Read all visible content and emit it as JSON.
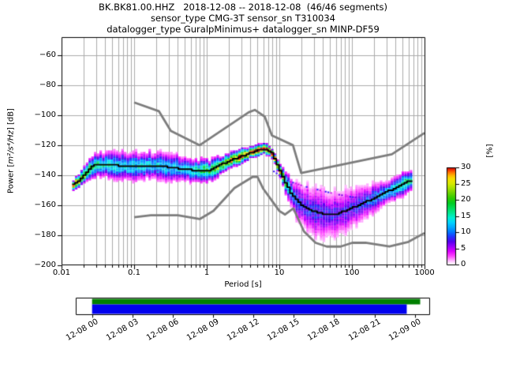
{
  "title": {
    "line1": "BK.BK81.00.HHZ   2018-12-08 -- 2018-12-08  (46/46 segments)",
    "line2": "sensor_type CMG-3T sensor_sn T310034",
    "line3": "datalogger_type GuralpMinimus+ datalogger_sn MINP-DF59"
  },
  "axes": {
    "ylabel": {
      "pre": "Power [",
      "math": "m²/s⁴/Hz",
      "post": "] [dB]"
    },
    "xlabel": "Period [s]",
    "colorbar_label": "[%]"
  },
  "chart_data": {
    "type": "heatmap",
    "title": "BK.BK81.00.HHZ 2018-12-08 -- 2018-12-08 (46/46 segments)",
    "x_axis": {
      "label": "Period [s]",
      "scale": "log",
      "range": [
        0.01,
        1000
      ],
      "ticks": [
        {
          "label": "0.01",
          "value": 0.01
        },
        {
          "label": "0.1",
          "value": 0.1
        },
        {
          "label": "1",
          "value": 1
        },
        {
          "label": "10",
          "value": 10
        },
        {
          "label": "100",
          "value": 100
        },
        {
          "label": "1000",
          "value": 1000
        }
      ]
    },
    "y_axis": {
      "label": "Power [m²/s⁴/Hz] [dB]",
      "range": [
        -200,
        -48
      ],
      "ticks": [
        {
          "label": "−60",
          "value": -60
        },
        {
          "label": "−80",
          "value": -80
        },
        {
          "label": "−100",
          "value": -100
        },
        {
          "label": "−120",
          "value": -120
        },
        {
          "label": "−140",
          "value": -140
        },
        {
          "label": "−160",
          "value": -160
        },
        {
          "label": "−180",
          "value": -180
        },
        {
          "label": "−200",
          "value": -200
        }
      ],
      "grid_values": [
        -60,
        -80,
        -100,
        -120,
        -140,
        -160,
        -180
      ]
    },
    "colorbar": {
      "label": "[%]",
      "range": [
        0,
        30
      ],
      "ticks": [
        {
          "label": "0",
          "value": 0
        },
        {
          "label": "5",
          "value": 5
        },
        {
          "label": "10",
          "value": 10
        },
        {
          "label": "15",
          "value": 15
        },
        {
          "label": "20",
          "value": 20
        },
        {
          "label": "25",
          "value": 25
        },
        {
          "label": "30",
          "value": 30
        }
      ],
      "stops": [
        [
          0,
          "#ffffff"
        ],
        [
          1,
          "#ffbbff"
        ],
        [
          2.5,
          "#ff44ff"
        ],
        [
          4,
          "#dd00ff"
        ],
        [
          5.5,
          "#9900ff"
        ],
        [
          7,
          "#5500ee"
        ],
        [
          8.5,
          "#2233ff"
        ],
        [
          10,
          "#0077ff"
        ],
        [
          11.5,
          "#00aaff"
        ],
        [
          13,
          "#00d4ff"
        ],
        [
          14.5,
          "#00f0d0"
        ],
        [
          16,
          "#00e890"
        ],
        [
          17.5,
          "#00dd55"
        ],
        [
          19,
          "#00cc22"
        ],
        [
          20.5,
          "#2ecc00"
        ],
        [
          22,
          "#66d400"
        ],
        [
          23.5,
          "#a0e000"
        ],
        [
          25,
          "#d6ea00"
        ],
        [
          26.5,
          "#f5e000"
        ],
        [
          27.5,
          "#ffbb00"
        ],
        [
          28.5,
          "#ff7700"
        ],
        [
          29.3,
          "#f53300"
        ],
        [
          30,
          "#bb0000"
        ]
      ]
    },
    "noise_models": {
      "color": "#7d7d7d",
      "nhnm": [
        [
          0.1,
          -91.5
        ],
        [
          0.22,
          -97.4
        ],
        [
          0.32,
          -110.5
        ],
        [
          0.8,
          -120
        ],
        [
          3.8,
          -98
        ],
        [
          4.6,
          -96.5
        ],
        [
          6.3,
          -101
        ],
        [
          7.9,
          -113.5
        ],
        [
          15.4,
          -120
        ],
        [
          20,
          -138.5
        ],
        [
          354.8,
          -126
        ],
        [
          1000,
          -111.8
        ]
      ],
      "nlnm": [
        [
          0.1,
          -168
        ],
        [
          0.17,
          -166.7
        ],
        [
          0.4,
          -166.7
        ],
        [
          0.8,
          -169.2
        ],
        [
          1.24,
          -163.7
        ],
        [
          2.4,
          -148.6
        ],
        [
          4.3,
          -141.1
        ],
        [
          5,
          -141.1
        ],
        [
          6,
          -149
        ],
        [
          10,
          -163.8
        ],
        [
          12,
          -166.2
        ],
        [
          15.6,
          -162.1
        ],
        [
          21.9,
          -177.5
        ],
        [
          31.6,
          -185
        ],
        [
          45,
          -187.5
        ],
        [
          70,
          -187.5
        ],
        [
          101,
          -185
        ],
        [
          154,
          -185
        ],
        [
          328,
          -187.5
        ],
        [
          600,
          -184.4
        ],
        [
          1000,
          -178.5
        ]
      ]
    },
    "mode_line": [
      [
        0.0146,
        -146.5
      ],
      [
        0.018,
        -143
      ],
      [
        0.022,
        -138
      ],
      [
        0.028,
        -133.5
      ],
      [
        0.04,
        -133
      ],
      [
        0.06,
        -133.5
      ],
      [
        0.1,
        -134.5
      ],
      [
        0.15,
        -133.5
      ],
      [
        0.22,
        -134
      ],
      [
        0.35,
        -135
      ],
      [
        0.5,
        -136
      ],
      [
        0.8,
        -137.3
      ],
      [
        1.1,
        -136.5
      ],
      [
        1.5,
        -133.5
      ],
      [
        2.2,
        -130
      ],
      [
        3,
        -127.5
      ],
      [
        4,
        -125.2
      ],
      [
        5.2,
        -123.3
      ],
      [
        6.3,
        -122.4
      ],
      [
        7.3,
        -123.5
      ],
      [
        8,
        -125.5
      ],
      [
        9,
        -130.5
      ],
      [
        10.5,
        -138
      ],
      [
        12.5,
        -146
      ],
      [
        15,
        -152.5
      ],
      [
        18,
        -157.5
      ],
      [
        22,
        -161
      ],
      [
        28,
        -163.5
      ],
      [
        38,
        -165.5
      ],
      [
        50,
        -166
      ],
      [
        65,
        -165.5
      ],
      [
        80,
        -164
      ],
      [
        100,
        -162
      ],
      [
        130,
        -159.5
      ],
      [
        170,
        -157
      ],
      [
        220,
        -154.5
      ],
      [
        280,
        -152
      ],
      [
        360,
        -149.5
      ],
      [
        450,
        -147
      ],
      [
        540,
        -145.5
      ],
      [
        620,
        -144
      ],
      [
        690,
        -143.3
      ]
    ],
    "band_halfwidth_db": [
      [
        0.0146,
        2.5
      ],
      [
        0.02,
        4.5
      ],
      [
        0.03,
        6
      ],
      [
        0.06,
        6.5
      ],
      [
        0.1,
        6.8
      ],
      [
        0.3,
        6.5
      ],
      [
        0.7,
        6
      ],
      [
        1.2,
        5
      ],
      [
        2,
        4
      ],
      [
        3.5,
        3.2
      ],
      [
        5,
        2.8
      ],
      [
        6.5,
        2.6
      ],
      [
        8,
        2.4
      ],
      [
        10,
        3.5
      ],
      [
        13,
        6
      ],
      [
        17,
        8.5
      ],
      [
        22,
        10.5
      ],
      [
        30,
        12
      ],
      [
        45,
        12
      ],
      [
        60,
        11.5
      ],
      [
        80,
        10.5
      ],
      [
        110,
        9
      ],
      [
        160,
        8
      ],
      [
        240,
        7
      ],
      [
        360,
        6
      ],
      [
        500,
        5.5
      ],
      [
        690,
        5
      ]
    ],
    "band_peak_pct": [
      [
        0.0146,
        30
      ],
      [
        0.019,
        24
      ],
      [
        0.025,
        17
      ],
      [
        0.04,
        14
      ],
      [
        0.08,
        13
      ],
      [
        0.15,
        13
      ],
      [
        0.3,
        12
      ],
      [
        0.6,
        13
      ],
      [
        0.9,
        18
      ],
      [
        1.3,
        20
      ],
      [
        2,
        24
      ],
      [
        3,
        28
      ],
      [
        4.5,
        30
      ],
      [
        6.3,
        30
      ],
      [
        8,
        30
      ],
      [
        9.5,
        28
      ],
      [
        11,
        22
      ],
      [
        14,
        13
      ],
      [
        18,
        9
      ],
      [
        25,
        8
      ],
      [
        35,
        7.5
      ],
      [
        50,
        7.5
      ],
      [
        70,
        7
      ],
      [
        100,
        7.5
      ],
      [
        150,
        8.5
      ],
      [
        220,
        10
      ],
      [
        320,
        12
      ],
      [
        450,
        15
      ],
      [
        560,
        17
      ],
      [
        690,
        15
      ]
    ],
    "outlier_streak": [
      [
        8.4,
        -137.5
      ],
      [
        13,
        -143.8
      ],
      [
        22,
        -147.4
      ],
      [
        36,
        -150
      ],
      [
        60,
        -152.6
      ],
      [
        100,
        -154.5
      ],
      [
        135,
        -155.5
      ]
    ],
    "period_range": [
      0.0146,
      690
    ],
    "timeline": {
      "ticks": [
        {
          "label": "12-08 00",
          "hour": 0
        },
        {
          "label": "12-08 03",
          "hour": 3
        },
        {
          "label": "12-08 06",
          "hour": 6
        },
        {
          "label": "12-08 09",
          "hour": 9
        },
        {
          "label": "12-08 12",
          "hour": 12
        },
        {
          "label": "12-08 15",
          "hour": 15
        },
        {
          "label": "12-08 18",
          "hour": 18
        },
        {
          "label": "12-08 21",
          "hour": 21
        },
        {
          "label": "12-09 00",
          "hour": 24
        }
      ],
      "bars": [
        {
          "name": "segments-bar",
          "color": "#008000",
          "start_hour": 0,
          "end_hour": 24.4
        },
        {
          "name": "coverage-bar",
          "color": "#0000ee",
          "start_hour": 0,
          "end_hour": 23.4
        }
      ]
    },
    "style": {
      "grid_color": "#ababab",
      "mode_line_color": "#000000",
      "frame_color": "#000000"
    }
  }
}
